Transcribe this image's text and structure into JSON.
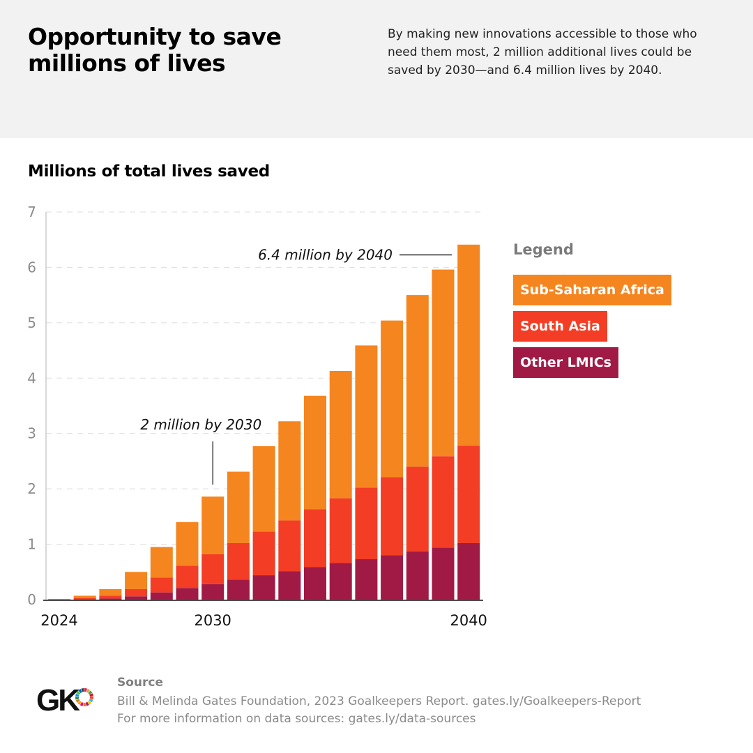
{
  "header": {
    "title": "Opportunity to save millions of lives",
    "description": "By making new innovations accessible to those who need them most, 2 million additional lives could be saved by 2030—and 6.4 million lives by 2040."
  },
  "colors": {
    "sub_saharan_africa": "#f5851f",
    "south_asia": "#f33d25",
    "other_lmics": "#a01a45",
    "header_bg": "#f2f2f2"
  },
  "legend": {
    "title": "Legend",
    "items": [
      {
        "label": "Sub-Saharan Africa",
        "color": "#f5851f"
      },
      {
        "label": "South Asia",
        "color": "#f33d25"
      },
      {
        "label": "Other LMICs",
        "color": "#a01a45"
      }
    ]
  },
  "chart_data": {
    "type": "bar",
    "stacked": true,
    "title": "Millions of total lives saved",
    "x": [
      2024,
      2025,
      2026,
      2027,
      2028,
      2029,
      2030,
      2031,
      2032,
      2033,
      2034,
      2035,
      2036,
      2037,
      2038,
      2039,
      2040
    ],
    "x_tick_labels": [
      {
        "year": 2024,
        "label": "2024"
      },
      {
        "year": 2030,
        "label": "2030"
      },
      {
        "year": 2040,
        "label": "2040"
      }
    ],
    "series": [
      {
        "name": "Other LMICs",
        "color": "#a01a45",
        "values": [
          0.0,
          0.01,
          0.02,
          0.06,
          0.13,
          0.21,
          0.28,
          0.36,
          0.44,
          0.51,
          0.59,
          0.66,
          0.73,
          0.8,
          0.87,
          0.94,
          1.02
        ]
      },
      {
        "name": "South Asia",
        "color": "#f33d25",
        "values": [
          0.0,
          0.02,
          0.05,
          0.13,
          0.27,
          0.4,
          0.54,
          0.66,
          0.79,
          0.92,
          1.04,
          1.17,
          1.29,
          1.41,
          1.53,
          1.65,
          1.76
        ]
      },
      {
        "name": "Sub-Saharan Africa",
        "color": "#f5851f",
        "values": [
          0.01,
          0.04,
          0.12,
          0.31,
          0.55,
          0.79,
          1.04,
          1.29,
          1.54,
          1.79,
          2.05,
          2.3,
          2.57,
          2.83,
          3.1,
          3.37,
          3.63
        ]
      }
    ],
    "ylim": [
      0,
      7
    ],
    "yticks": [
      0,
      1,
      2,
      3,
      4,
      5,
      6,
      7
    ],
    "grid": true,
    "legend_position": "right",
    "annotations": [
      {
        "text": "2 million by 2030",
        "year": 2030,
        "value": 2.0
      },
      {
        "text": "6.4 million by 2040",
        "year": 2040,
        "value": 6.4
      }
    ]
  },
  "source": {
    "title": "Source",
    "line1": "Bill & Melinda Gates Foundation, 2023 Goalkeepers Report. gates.ly/Goalkeepers-Report",
    "line2": "For more information on data sources: gates.ly/data-sources"
  },
  "logo": {
    "text": "GK",
    "colors": [
      "#e5243b",
      "#dda63a",
      "#4c9f38",
      "#c5192d",
      "#ff3a21",
      "#26bde2",
      "#fcc30b",
      "#a21942",
      "#fd6925",
      "#dd1367",
      "#fd9d24",
      "#bf8b2e",
      "#3f7e44",
      "#0a97d9",
      "#56c02b",
      "#00689d",
      "#19486a"
    ]
  }
}
